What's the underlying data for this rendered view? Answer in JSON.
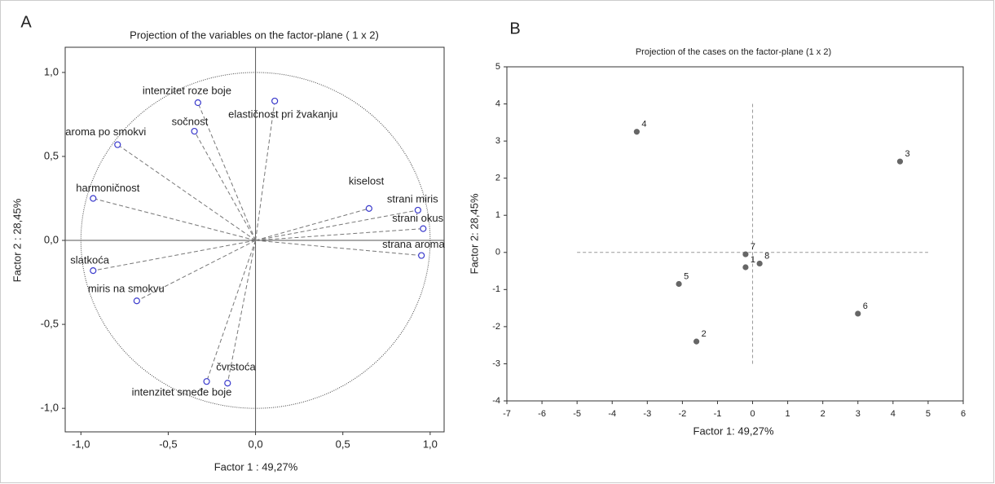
{
  "chart_data": [
    {
      "type": "scatter",
      "panel": "A",
      "title": "Projection of the variables on the factor-plane ( 1 x 2)",
      "x_label": "Factor 1 : 49,27%",
      "y_label": "Factor 2 : 28,45%",
      "point_labels": [
        "intenzitet roze boje",
        "elastičnost pri žvakanju",
        "sočnost",
        "aroma po smokvi",
        "harmoničnost",
        "slatkoća",
        "miris na smokvu",
        "čvrstoća",
        "intenzitet smeđe boje",
        "kiselost",
        "strani miris",
        "strani okus",
        "strana aroma"
      ],
      "x": [
        -0.33,
        0.11,
        -0.35,
        -0.79,
        -0.93,
        -0.93,
        -0.68,
        -0.16,
        -0.28,
        0.65,
        0.93,
        0.96,
        0.95
      ],
      "values": [
        0.82,
        0.83,
        0.65,
        0.57,
        0.25,
        -0.18,
        -0.36,
        -0.85,
        -0.84,
        0.19,
        0.18,
        0.07,
        -0.09
      ],
      "color": "#3a3acc",
      "marker": "hollow",
      "vectors": true,
      "unit_circle": 1,
      "origin_axes": true,
      "xlim": [
        -1.09,
        1.08
      ],
      "ylim": [
        -1.14,
        1.15
      ],
      "xticks": [
        {
          "value": -1,
          "label": "-1,0"
        },
        {
          "value": -0.5,
          "label": "-0,5"
        },
        {
          "value": 0,
          "label": "0,0"
        },
        {
          "value": 0.5,
          "label": "0,5"
        },
        {
          "value": 1,
          "label": "1,0"
        }
      ],
      "yticks": [
        {
          "value": -1,
          "label": "-1,0"
        },
        {
          "value": -0.5,
          "label": "-0,5"
        },
        {
          "value": 0,
          "label": "0,0"
        },
        {
          "value": 0.5,
          "label": "0,5"
        },
        {
          "value": 1,
          "label": "1,0"
        }
      ]
    },
    {
      "type": "scatter",
      "panel": "B",
      "title": "Projection of the cases on the factor-plane (1 x 2)",
      "x_label": "Factor 1: 49,27%",
      "y_label": "Factor 2: 28,45%",
      "point_labels": [
        "1",
        "2",
        "3",
        "4",
        "5",
        "6",
        "7",
        "8"
      ],
      "x": [
        -0.2,
        -1.6,
        4.2,
        -3.3,
        -2.1,
        3.0,
        -0.2,
        0.2
      ],
      "values": [
        -0.4,
        -2.4,
        2.45,
        3.25,
        -0.85,
        -1.65,
        -0.05,
        -0.3
      ],
      "color": "#666666",
      "marker": "filled",
      "crosshair": {
        "x": [
          -5,
          5
        ],
        "y": [
          -3,
          4
        ]
      },
      "xlim": [
        -7,
        6
      ],
      "ylim": [
        -4,
        5
      ],
      "xticks": [
        -7,
        -6,
        -5,
        -4,
        -3,
        -2,
        -1,
        0,
        1,
        2,
        3,
        4,
        5,
        6
      ],
      "yticks": [
        -4,
        -3,
        -2,
        -1,
        0,
        1,
        2,
        3,
        4,
        5
      ]
    }
  ]
}
